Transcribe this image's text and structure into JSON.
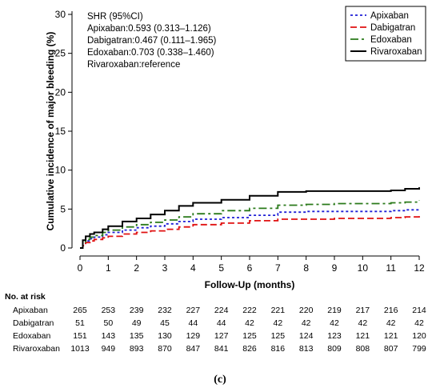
{
  "chart_data": {
    "type": "line",
    "xlabel": "Follow-Up (months)",
    "ylabel": "Cumulative incidence of major bleeding (%)",
    "xlim": [
      0,
      12
    ],
    "ylim": [
      0,
      30
    ],
    "x_ticks": [
      0,
      1,
      2,
      3,
      4,
      5,
      6,
      7,
      8,
      9,
      10,
      11,
      12
    ],
    "y_ticks": [
      0,
      5,
      10,
      15,
      20,
      25,
      30
    ],
    "step": true,
    "grid": false,
    "legend_position": "top-right",
    "annotations": [
      "SHR (95%CI)",
      "Apixaban:0.593 (0.313–1.126)",
      "Dabigatran:0.467 (0.111–1.965)",
      "Edoxaban:0.703 (0.338–1.460)",
      "Rivaroxaban:reference"
    ],
    "series": [
      {
        "name": "Apixaban",
        "color": "#1f1fd6",
        "dash": "dotted",
        "x": [
          0,
          0.1,
          0.2,
          0.35,
          0.5,
          0.8,
          1.0,
          1.5,
          2.0,
          2.5,
          3.0,
          3.5,
          4.0,
          5.0,
          6.0,
          7.0,
          8.0,
          9.0,
          10.0,
          11.0,
          11.5,
          12.0
        ],
        "y": [
          0,
          0.5,
          0.9,
          1.2,
          1.4,
          1.7,
          2.0,
          2.3,
          2.6,
          2.8,
          3.1,
          3.4,
          3.7,
          3.9,
          4.2,
          4.6,
          4.7,
          4.7,
          4.7,
          4.8,
          4.9,
          5.0
        ]
      },
      {
        "name": "Dabigatran",
        "color": "#e01010",
        "dash": "dashed",
        "x": [
          0,
          0.1,
          0.2,
          0.35,
          0.5,
          0.8,
          1.0,
          1.5,
          2.0,
          2.5,
          3.0,
          3.5,
          4.0,
          5.0,
          6.0,
          7.0,
          8.0,
          9.0,
          10.0,
          11.0,
          11.5,
          12.0
        ],
        "y": [
          0,
          0.3,
          0.7,
          0.9,
          1.1,
          1.3,
          1.5,
          1.8,
          2.0,
          2.2,
          2.4,
          2.7,
          3.0,
          3.2,
          3.5,
          3.7,
          3.7,
          3.8,
          3.8,
          3.9,
          4.0,
          4.1
        ]
      },
      {
        "name": "Edoxaban",
        "color": "#2a7a1a",
        "dash": "dashdot",
        "x": [
          0,
          0.1,
          0.2,
          0.35,
          0.5,
          0.8,
          1.0,
          1.5,
          2.0,
          2.5,
          3.0,
          3.5,
          4.0,
          5.0,
          6.0,
          7.0,
          8.0,
          9.0,
          10.0,
          11.0,
          11.5,
          12.0
        ],
        "y": [
          0,
          0.7,
          1.1,
          1.4,
          1.6,
          2.0,
          2.3,
          2.7,
          3.0,
          3.3,
          3.6,
          4.0,
          4.4,
          4.8,
          5.1,
          5.5,
          5.6,
          5.7,
          5.7,
          5.8,
          5.9,
          6.1
        ]
      },
      {
        "name": "Rivaroxaban",
        "color": "#000000",
        "dash": "solid",
        "x": [
          0,
          0.1,
          0.2,
          0.35,
          0.5,
          0.8,
          1.0,
          1.5,
          2.0,
          2.5,
          3.0,
          3.5,
          4.0,
          5.0,
          6.0,
          7.0,
          8.0,
          9.0,
          10.0,
          11.0,
          11.5,
          12.0
        ],
        "y": [
          0,
          1.0,
          1.5,
          1.8,
          2.0,
          2.4,
          2.8,
          3.4,
          3.8,
          4.3,
          4.8,
          5.4,
          5.8,
          6.2,
          6.7,
          7.2,
          7.3,
          7.3,
          7.3,
          7.4,
          7.6,
          7.8
        ]
      }
    ],
    "at_risk": {
      "title": "No. at risk",
      "rows": [
        {
          "label": "Apixaban",
          "values": [
            "265",
            "253",
            "239",
            "232",
            "227",
            "224",
            "222",
            "221",
            "220",
            "219",
            "217",
            "216",
            "214"
          ]
        },
        {
          "label": "Dabigatran",
          "values": [
            "51",
            "50",
            "49",
            "45",
            "44",
            "44",
            "42",
            "42",
            "42",
            "42",
            "42",
            "42",
            "42"
          ]
        },
        {
          "label": "Edoxaban",
          "values": [
            "151",
            "143",
            "135",
            "130",
            "129",
            "127",
            "125",
            "125",
            "124",
            "123",
            "121",
            "121",
            "120"
          ]
        },
        {
          "label": "Rivaroxaban",
          "values": [
            "1013",
            "949",
            "893",
            "870",
            "847",
            "841",
            "826",
            "816",
            "813",
            "809",
            "808",
            "807",
            "799"
          ]
        }
      ]
    },
    "panel_label": "(c)"
  }
}
